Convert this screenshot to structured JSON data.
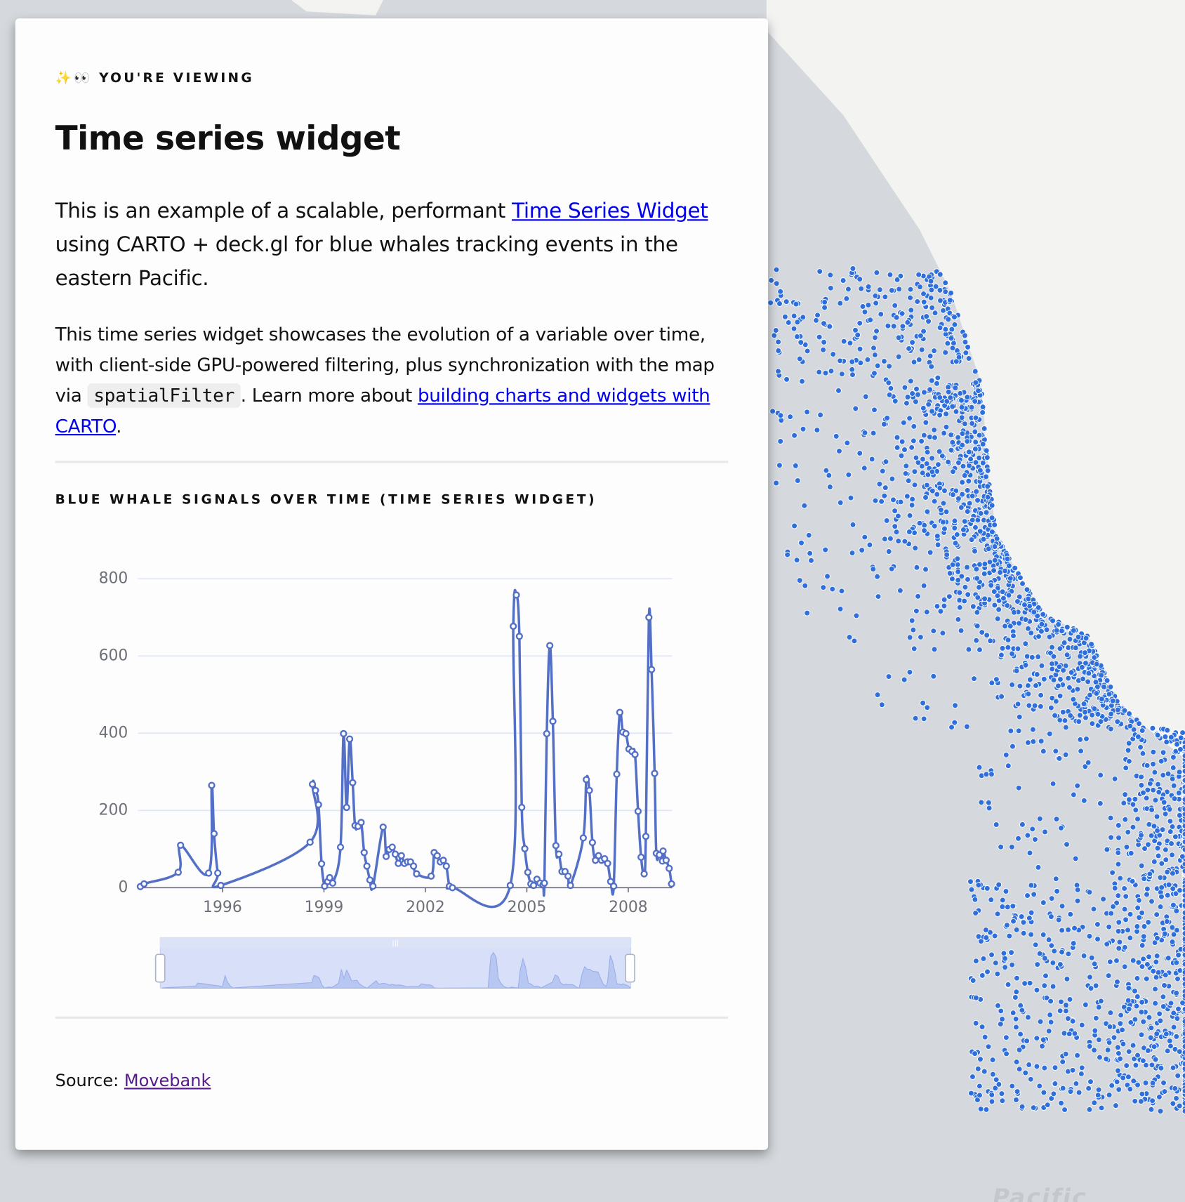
{
  "eyebrow": "✨👀 YOU'RE VIEWING",
  "title": "Time series widget",
  "paragraphs": [
    [
      "This is an example of a scalable, performant ",
      "Time Series Widget",
      " using CARTO + deck.gl for blue whales tracking events in the eastern Pacific."
    ],
    [
      "This time series widget showcases the evolution of a variable over time, with client-side GPU-powered filtering, plus synchronization with the map via ",
      "spatialFilter",
      ". Learn more about ",
      "building charts and widgets with CARTO",
      "."
    ]
  ],
  "source": {
    "label": "Source: ",
    "link": "Movebank"
  },
  "map_label": "Pacific",
  "chart_data": {
    "type": "line",
    "title": "BLUE WHALE SIGNALS OVER TIME (TIME SERIES WIDGET)",
    "color": "#5470c6",
    "x": [
      1993.57,
      1993.68,
      1994.69,
      1994.76,
      1995.59,
      1995.68,
      1995.75,
      1995.86,
      1995.95,
      1998.59,
      1998.66,
      1998.75,
      1998.84,
      1998.93,
      1999.02,
      1999.11,
      1999.17,
      1999.26,
      1999.49,
      1999.58,
      1999.67,
      1999.76,
      1999.85,
      1999.92,
      2000.01,
      2000.1,
      2000.19,
      2000.27,
      2000.36,
      2000.45,
      2000.75,
      2000.84,
      2000.93,
      2001.02,
      2001.11,
      2001.2,
      2001.29,
      2001.38,
      2001.47,
      2001.56,
      2001.65,
      2001.74,
      2002.17,
      2002.26,
      2002.35,
      2002.44,
      2002.53,
      2002.62,
      2002.71,
      2002.8,
      2004.51,
      2004.6,
      2004.69,
      2004.78,
      2004.85,
      2004.94,
      2005.03,
      2005.12,
      2005.2,
      2005.3,
      2005.39,
      2005.48,
      2005.52,
      2005.59,
      2005.68,
      2005.77,
      2005.86,
      2005.95,
      2006.04,
      2006.13,
      2006.22,
      2006.29,
      2006.67,
      2006.76,
      2006.85,
      2006.94,
      2007.03,
      2007.12,
      2007.21,
      2007.3,
      2007.39,
      2007.48,
      2007.57,
      2007.66,
      2007.75,
      2007.84,
      2007.93,
      2008.02,
      2008.11,
      2008.2,
      2008.29,
      2008.38,
      2008.47,
      2008.52,
      2008.61,
      2008.69,
      2008.78,
      2008.83,
      2008.92,
      2009.01,
      2009.03,
      2009.12,
      2009.21,
      2009.28
    ],
    "values": [
      3,
      10,
      40,
      110,
      38,
      265,
      140,
      38,
      6,
      118,
      268,
      252,
      215,
      62,
      4,
      16,
      26,
      12,
      105,
      399,
      208,
      385,
      272,
      161,
      159,
      169,
      91,
      56,
      20,
      4,
      157,
      81,
      99,
      105,
      87,
      63,
      83,
      63,
      67,
      67,
      56,
      36,
      30,
      91,
      83,
      67,
      71,
      56,
      4,
      0,
      6,
      677,
      758,
      651,
      208,
      101,
      40,
      10,
      6,
      22,
      12,
      8,
      12,
      399,
      627,
      431,
      109,
      87,
      42,
      42,
      30,
      6,
      129,
      280,
      252,
      117,
      71,
      83,
      71,
      75,
      63,
      16,
      4,
      294,
      454,
      403,
      399,
      359,
      353,
      345,
      198,
      79,
      36,
      133,
      700,
      565,
      296,
      89,
      85,
      69,
      95,
      71,
      50,
      10
    ],
    "xlim": [
      1993.5,
      2009.3
    ],
    "xticks": [
      1996,
      1999,
      2002,
      2005,
      2008
    ],
    "ylim": [
      0,
      800
    ],
    "yticks": [
      0,
      200,
      400,
      600,
      800
    ],
    "grid": true
  }
}
